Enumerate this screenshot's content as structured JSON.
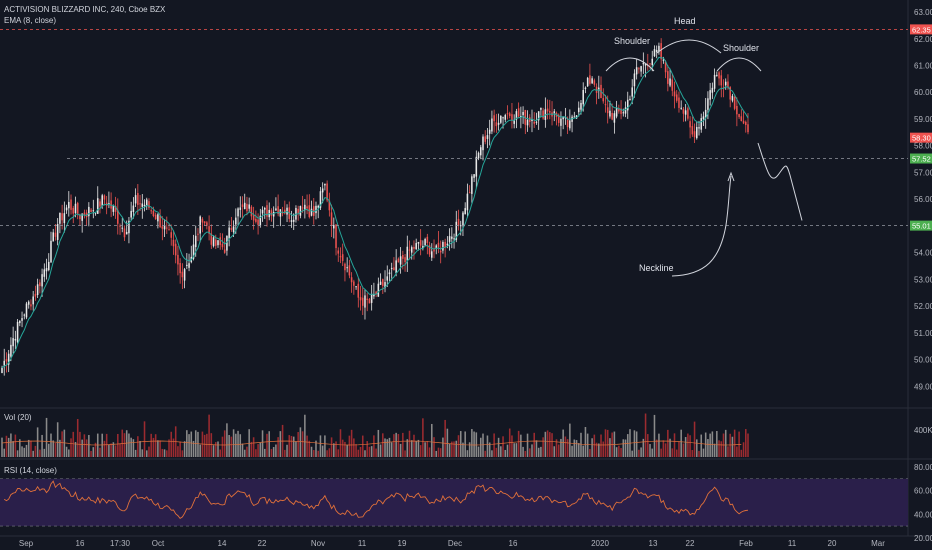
{
  "header": {
    "symbol_line": "ACTIVISION BLIZZARD INC, 240, Cboe BZX",
    "indicator_line": "EMA (8, close)"
  },
  "volume_pane": {
    "label": "Vol (20)",
    "axis_label": "400K"
  },
  "rsi_pane": {
    "label": "RSI (14, close)",
    "ticks": [
      80.0,
      60.0,
      40.0,
      20.0
    ],
    "bands": [
      70,
      30
    ]
  },
  "colors": {
    "bg": "#131722",
    "up": "#e8e8e8",
    "down": "#ef5350",
    "ema": "#26a69a",
    "vol_up": "#8a8a8a",
    "vol_down": "#9c2b30",
    "rsi_line": "#e0703a",
    "rsi_bg": "#2a1f4a"
  },
  "annotations": {
    "left_shoulder": "Shoulder",
    "head": "Head",
    "right_shoulder": "Shoulder",
    "neckline": "Neckline"
  },
  "chart_data": {
    "type": "candlestick",
    "title": "ACTIVISION BLIZZARD INC, 240, Cboe BZX",
    "y_ticks": [
      "63.00",
      "62.00",
      "61.00",
      "60.00",
      "59.00",
      "58.00",
      "57.00",
      "56.00",
      "55.00",
      "54.00",
      "53.00",
      "52.00",
      "51.00",
      "50.00",
      "49.00"
    ],
    "x_ticks": [
      "Sep",
      "16",
      "17:30",
      "Oct",
      "14",
      "22",
      "Nov",
      "11",
      "19",
      "Dec",
      "16",
      "2020",
      "13",
      "22",
      "Feb",
      "11",
      "20",
      "Mar"
    ],
    "ylim": [
      48.3,
      63.3
    ],
    "levels": [
      {
        "label": "62.35",
        "value": 62.35,
        "kind": "resistance",
        "color": "#ef5350"
      },
      {
        "label": "57.52",
        "value": 57.52,
        "kind": "support",
        "color": "#4caf50"
      },
      {
        "label": "55.01",
        "value": 55.01,
        "kind": "neckline",
        "color": "#4caf50"
      }
    ],
    "last_price": {
      "label": "58.30",
      "value": 58.3
    },
    "anchors": [
      [
        0,
        49.7
      ],
      [
        5,
        50.8
      ],
      [
        10,
        51.8
      ],
      [
        15,
        52.5
      ],
      [
        20,
        53.6
      ],
      [
        25,
        55.1
      ],
      [
        30,
        55.8
      ],
      [
        35,
        55.4
      ],
      [
        40,
        55.6
      ],
      [
        46,
        56.0
      ],
      [
        50,
        55.6
      ],
      [
        55,
        54.8
      ],
      [
        60,
        55.9
      ],
      [
        65,
        55.8
      ],
      [
        70,
        55.3
      ],
      [
        75,
        54.6
      ],
      [
        80,
        53.2
      ],
      [
        85,
        53.9
      ],
      [
        90,
        55.4
      ],
      [
        95,
        54.3
      ],
      [
        100,
        54.2
      ],
      [
        105,
        55.5
      ],
      [
        110,
        55.7
      ],
      [
        115,
        55.3
      ],
      [
        120,
        55.6
      ],
      [
        125,
        55.7
      ],
      [
        130,
        55.4
      ],
      [
        135,
        55.9
      ],
      [
        140,
        55.4
      ],
      [
        145,
        56.5
      ],
      [
        150,
        54.4
      ],
      [
        155,
        53.4
      ],
      [
        160,
        52.3
      ],
      [
        165,
        52.1
      ],
      [
        170,
        52.7
      ],
      [
        175,
        53.2
      ],
      [
        180,
        53.8
      ],
      [
        185,
        54.2
      ],
      [
        190,
        54.3
      ],
      [
        195,
        54.0
      ],
      [
        200,
        54.5
      ],
      [
        205,
        55.0
      ],
      [
        210,
        56.4
      ],
      [
        215,
        58.0
      ],
      [
        220,
        58.8
      ],
      [
        225,
        59.2
      ],
      [
        230,
        59.2
      ],
      [
        235,
        59.0
      ],
      [
        240,
        59.1
      ],
      [
        245,
        59.4
      ],
      [
        250,
        59.0
      ],
      [
        255,
        58.7
      ],
      [
        260,
        59.8
      ],
      [
        265,
        60.6
      ],
      [
        270,
        59.5
      ],
      [
        275,
        59.1
      ],
      [
        280,
        59.4
      ],
      [
        285,
        60.8
      ],
      [
        290,
        61.2
      ],
      [
        295,
        61.5
      ],
      [
        300,
        60.3
      ],
      [
        305,
        59.5
      ],
      [
        310,
        58.4
      ],
      [
        315,
        59.2
      ],
      [
        320,
        60.6
      ],
      [
        325,
        60.4
      ],
      [
        330,
        59.4
      ],
      [
        335,
        58.3
      ]
    ],
    "bars": 336,
    "projection": "dashed path breaking below the 55.01 neckline (price to ~55.0)"
  }
}
